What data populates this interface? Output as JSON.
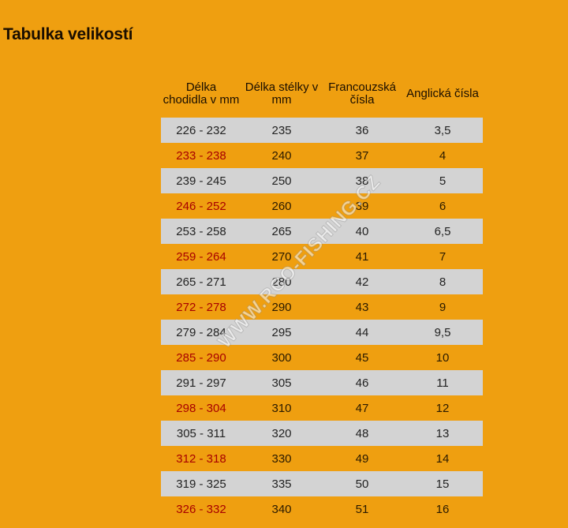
{
  "title": "Tabulka velikostí",
  "table": {
    "headers": [
      "Délka chodidla v mm",
      "Délka stélky v mm",
      "Francouzská čísla",
      "Anglická čísla"
    ],
    "rows": [
      [
        "226 - 232",
        "235",
        "36",
        "3,5"
      ],
      [
        "233 - 238",
        "240",
        "37",
        "4"
      ],
      [
        "239 - 245",
        "250",
        "38",
        "5"
      ],
      [
        "246 - 252",
        "260",
        "39",
        "6"
      ],
      [
        "253 - 258",
        "265",
        "40",
        "6,5"
      ],
      [
        "259 - 264",
        "270",
        "41",
        "7"
      ],
      [
        "265 - 271",
        "280",
        "42",
        "8"
      ],
      [
        "272 - 278",
        "290",
        "43",
        "9"
      ],
      [
        "279 - 284",
        "295",
        "44",
        "9,5"
      ],
      [
        "285 - 290",
        "300",
        "45",
        "10"
      ],
      [
        "291 - 297",
        "305",
        "46",
        "11"
      ],
      [
        "298 - 304",
        "310",
        "47",
        "12"
      ],
      [
        "305 - 311",
        "320",
        "48",
        "13"
      ],
      [
        "312 - 318",
        "330",
        "49",
        "14"
      ],
      [
        "319 - 325",
        "335",
        "50",
        "15"
      ],
      [
        "326 - 332",
        "340",
        "51",
        "16"
      ]
    ]
  },
  "watermark": "WWW.RCO-FISHING.CZ",
  "colors": {
    "background": "#ef9f10",
    "row_light": "#d3d3d3",
    "text_red": "#a80000"
  }
}
